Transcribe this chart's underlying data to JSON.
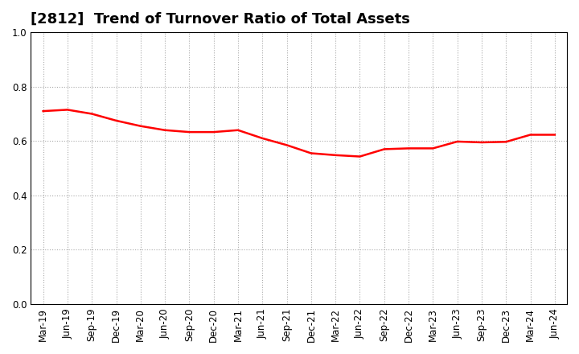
{
  "title": "[2812]  Trend of Turnover Ratio of Total Assets",
  "x_labels": [
    "Mar-19",
    "Jun-19",
    "Sep-19",
    "Dec-19",
    "Mar-20",
    "Jun-20",
    "Sep-20",
    "Dec-20",
    "Mar-21",
    "Jun-21",
    "Sep-21",
    "Dec-21",
    "Mar-22",
    "Jun-22",
    "Sep-22",
    "Dec-22",
    "Mar-23",
    "Jun-23",
    "Sep-23",
    "Dec-23",
    "Mar-24",
    "Jun-24"
  ],
  "values": [
    0.71,
    0.715,
    0.7,
    0.675,
    0.655,
    0.64,
    0.633,
    0.633,
    0.64,
    0.61,
    0.585,
    0.555,
    0.548,
    0.543,
    0.57,
    0.573,
    0.573,
    0.598,
    0.595,
    0.597,
    0.623,
    0.623
  ],
  "line_color": "#FF0000",
  "background_color": "#FFFFFF",
  "grid_color": "#AAAAAA",
  "spine_color": "#000000",
  "ylim": [
    0.0,
    1.0
  ],
  "yticks": [
    0.0,
    0.2,
    0.4,
    0.6,
    0.8,
    1.0
  ],
  "title_fontsize": 13,
  "tick_fontsize": 8.5,
  "line_width": 1.8
}
